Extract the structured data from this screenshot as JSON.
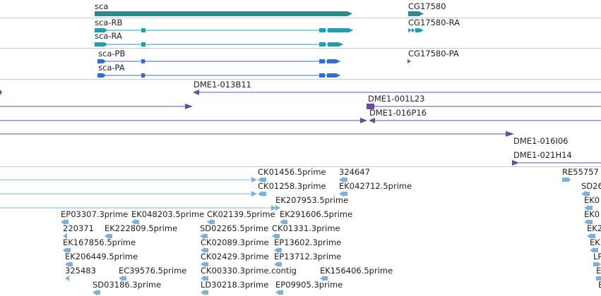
{
  "colors": {
    "gene": "#2e8b87",
    "transcript_rb": "#1e9fb4",
    "transcript_pb": "#2f6fd1",
    "clone": "#6a4aa0",
    "est": "#7ab2dc",
    "separator": "#c9c9c9",
    "text": "#222222"
  },
  "tracks": {
    "genes": {
      "sca": "sca",
      "cg17580": "CG17580"
    },
    "transcripts": {
      "sca_rb": "sca-RB",
      "sca_ra": "sca-RA",
      "cg17580_ra": "CG17580-RA"
    },
    "proteins": {
      "sca_pb": "sca-PB",
      "sca_pa": "sca-PA",
      "cg17580_pa": "CG17580-PA"
    },
    "clones": {
      "c1": "DME1-013B11",
      "c2": "DME1-001L23",
      "c3": "DME1-016P16",
      "c4": "DME1-016I06",
      "c5": "DME1-021H14"
    },
    "ests": {
      "e1": "CK01456.5prime",
      "e2": "324647",
      "e3": "RE55757",
      "e4": "CK01258.3prime",
      "e5": "EK042712.5prime",
      "e6": "SD26",
      "e7": "EK207953.5prime",
      "e8": "EK0",
      "e9": "EP03307.3prime",
      "e10": "EK048203.5prime",
      "e11": "CK02139.5prime",
      "e12": "EK291606.5prime",
      "e13": "EK0",
      "e14": "220371",
      "e15": "EK222809.5prime",
      "e16": "SD02265.5prime",
      "e17": "CK01331.3prime",
      "e18": "EK2",
      "e19": "EK167856.5prime",
      "e20": "CK02089.3prime",
      "e21": "EP13602.3prime",
      "e22": "EK",
      "e23": "EK206449.5prime",
      "e24": "CK02429.3prime",
      "e25": "EP13712.3prime",
      "e26": "LP",
      "e27": "325483",
      "e28": "EC39576.5prime",
      "e29": "CK00330.3prime.contig",
      "e30": "EK156406.5prime",
      "e31": "EK",
      "e32": "SD03186.3prime",
      "e33": "LD30218.3prime",
      "e34": "EP09905.3prime",
      "e35": "EK"
    }
  }
}
